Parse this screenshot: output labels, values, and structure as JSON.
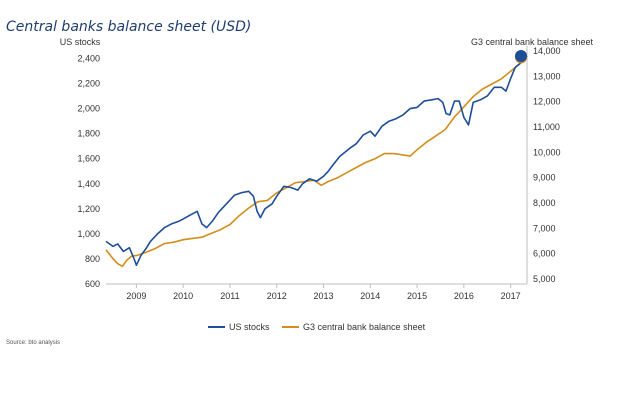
{
  "chart_data": {
    "type": "line",
    "title": "Central banks balance sheet (USD)",
    "left_axis_label": "US stocks",
    "right_axis_label": "G3 central bank balance sheet",
    "source": "Source:  bto analysis",
    "x_ticks": [
      "2009",
      "2010",
      "2011",
      "2012",
      "2013",
      "2014",
      "2015",
      "2016",
      "2017"
    ],
    "x_range": [
      2008.35,
      2017.35
    ],
    "left_ylim": [
      600,
      2500
    ],
    "left_ticks": [
      "600",
      "800",
      "1,000",
      "1,200",
      "1,400",
      "1,600",
      "1,800",
      "2,000",
      "2,200",
      "2,400"
    ],
    "left_tick_values": [
      600,
      800,
      1000,
      1200,
      1400,
      1600,
      1800,
      2000,
      2200,
      2400
    ],
    "right_ylim": [
      4800,
      14200
    ],
    "right_ticks": [
      "5,000",
      "6,000",
      "7,000",
      "8,000",
      "9,000",
      "10,000",
      "11,000",
      "12,000",
      "13,000",
      "14,000"
    ],
    "right_tick_values": [
      5000,
      6000,
      7000,
      8000,
      9000,
      10000,
      11000,
      12000,
      13000,
      14000
    ],
    "legend_position": "bottom",
    "series": [
      {
        "name": "US stocks",
        "axis": "left",
        "color": "#1f4e99",
        "x": [
          2008.35,
          2008.5,
          2008.6,
          2008.72,
          2008.85,
          2008.95,
          2009.0,
          2009.1,
          2009.2,
          2009.3,
          2009.45,
          2009.6,
          2009.75,
          2009.9,
          2010.0,
          2010.15,
          2010.3,
          2010.4,
          2010.5,
          2010.62,
          2010.75,
          2010.9,
          2011.0,
          2011.1,
          2011.25,
          2011.4,
          2011.5,
          2011.58,
          2011.65,
          2011.75,
          2011.9,
          2012.0,
          2012.15,
          2012.3,
          2012.45,
          2012.55,
          2012.7,
          2012.85,
          2013.0,
          2013.1,
          2013.2,
          2013.35,
          2013.45,
          2013.55,
          2013.7,
          2013.85,
          2014.0,
          2014.1,
          2014.25,
          2014.4,
          2014.55,
          2014.7,
          2014.85,
          2015.0,
          2015.15,
          2015.3,
          2015.45,
          2015.55,
          2015.62,
          2015.7,
          2015.8,
          2015.9,
          2016.0,
          2016.1,
          2016.2,
          2016.35,
          2016.5,
          2016.65,
          2016.8,
          2016.9,
          2017.0,
          2017.1,
          2017.2,
          2017.35
        ],
        "values": [
          940,
          900,
          920,
          860,
          890,
          800,
          750,
          830,
          880,
          940,
          1000,
          1050,
          1080,
          1100,
          1120,
          1150,
          1180,
          1080,
          1050,
          1100,
          1170,
          1230,
          1270,
          1310,
          1330,
          1340,
          1300,
          1180,
          1130,
          1200,
          1240,
          1300,
          1380,
          1370,
          1350,
          1400,
          1440,
          1420,
          1460,
          1500,
          1550,
          1620,
          1650,
          1680,
          1720,
          1790,
          1820,
          1780,
          1860,
          1900,
          1920,
          1950,
          2000,
          2010,
          2060,
          2070,
          2080,
          2050,
          1960,
          1950,
          2060,
          2060,
          1930,
          1870,
          2050,
          2070,
          2100,
          2170,
          2170,
          2140,
          2240,
          2330,
          2360,
          2420
        ]
      },
      {
        "name": "G3 central bank balance sheet",
        "axis": "right",
        "color": "#d28e1b",
        "x": [
          2008.35,
          2008.5,
          2008.6,
          2008.7,
          2008.8,
          2008.9,
          2009.0,
          2009.2,
          2009.4,
          2009.6,
          2009.8,
          2010.0,
          2010.2,
          2010.4,
          2010.6,
          2010.8,
          2011.0,
          2011.2,
          2011.4,
          2011.6,
          2011.8,
          2012.0,
          2012.2,
          2012.4,
          2012.6,
          2012.8,
          2012.95,
          2013.1,
          2013.3,
          2013.5,
          2013.7,
          2013.9,
          2014.1,
          2014.3,
          2014.5,
          2014.7,
          2014.85,
          2015.0,
          2015.2,
          2015.4,
          2015.6,
          2015.8,
          2016.0,
          2016.2,
          2016.4,
          2016.6,
          2016.8,
          2017.0,
          2017.2,
          2017.35
        ],
        "values": [
          6150,
          5800,
          5600,
          5500,
          5750,
          5900,
          5920,
          6050,
          6200,
          6400,
          6450,
          6550,
          6600,
          6650,
          6800,
          6950,
          7150,
          7500,
          7800,
          8050,
          8100,
          8400,
          8600,
          8800,
          8850,
          8900,
          8700,
          8850,
          9000,
          9200,
          9400,
          9600,
          9750,
          9950,
          9950,
          9900,
          9850,
          10100,
          10400,
          10650,
          10900,
          11400,
          11800,
          12200,
          12500,
          12700,
          12900,
          13200,
          13500,
          13750
        ]
      }
    ]
  }
}
